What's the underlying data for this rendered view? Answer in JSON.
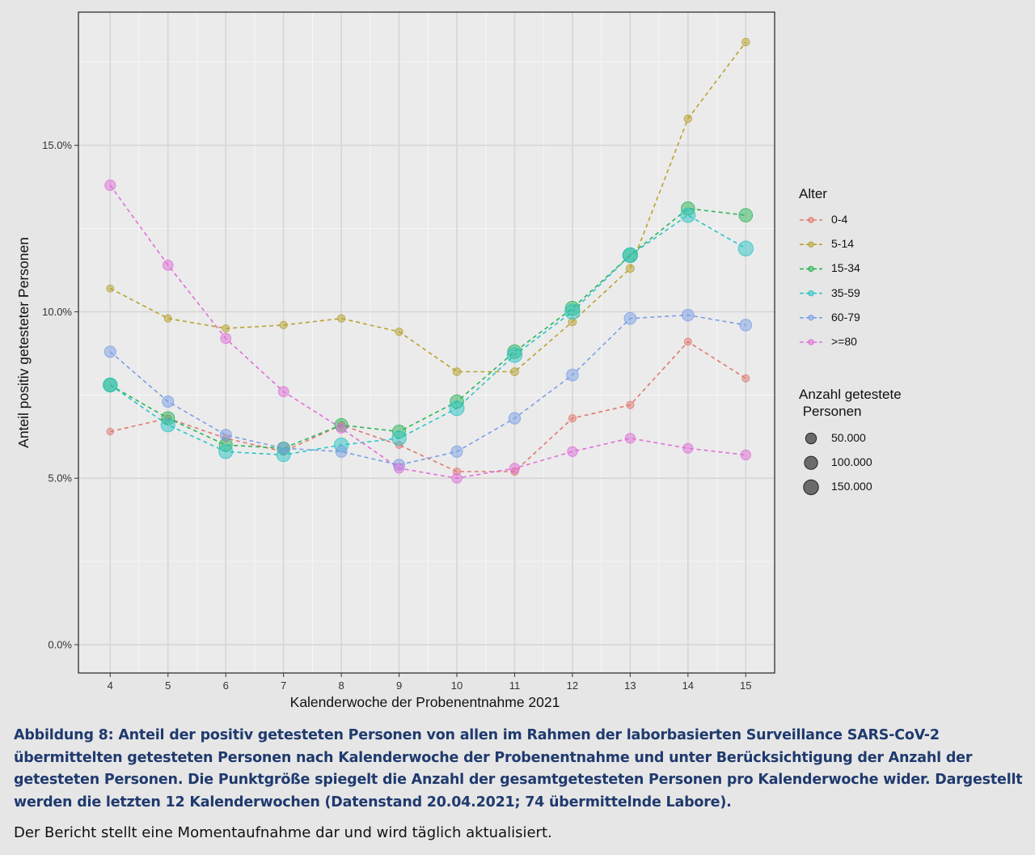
{
  "chart_data": {
    "type": "line",
    "title": "",
    "xlabel": "Kalenderwoche der Probenentnahme 2021",
    "ylabel": "Anteil positiv getesteter Personen",
    "x": [
      4,
      5,
      6,
      7,
      8,
      9,
      10,
      11,
      12,
      13,
      14,
      15
    ],
    "xlim": [
      3.45,
      15.5
    ],
    "ylim": [
      -0.85,
      19.0
    ],
    "yticks": [
      0,
      5,
      10,
      15
    ],
    "ytick_labels": [
      "0.0%",
      "5.0%",
      "10.0%",
      "15.0%"
    ],
    "xtick_labels": [
      "4",
      "5",
      "6",
      "7",
      "8",
      "9",
      "10",
      "11",
      "12",
      "13",
      "14",
      "15"
    ],
    "grid": true,
    "series": [
      {
        "name": "0-4",
        "color": "#e07a72",
        "values": [
          6.4,
          6.8,
          6.2,
          5.8,
          6.6,
          6.0,
          5.2,
          5.2,
          6.8,
          7.2,
          9.1,
          8.0
        ],
        "sizes": [
          4000,
          5000,
          5000,
          5000,
          6000,
          6000,
          7000,
          8000,
          8000,
          8000,
          7000,
          7000
        ]
      },
      {
        "name": "5-14",
        "color": "#b8a330",
        "values": [
          10.7,
          9.8,
          9.5,
          9.6,
          9.8,
          9.4,
          8.2,
          8.2,
          9.7,
          11.3,
          15.8,
          18.1
        ],
        "sizes": [
          6000,
          7000,
          7000,
          8000,
          9000,
          9000,
          11000,
          12000,
          12000,
          12000,
          10000,
          10000
        ]
      },
      {
        "name": "15-34",
        "color": "#2db55a",
        "values": [
          7.8,
          6.8,
          6.0,
          5.9,
          6.6,
          6.4,
          7.3,
          8.8,
          10.1,
          11.7,
          13.1,
          12.9
        ],
        "sizes": [
          110000,
          100000,
          100000,
          90000,
          95000,
          100000,
          110000,
          120000,
          130000,
          140000,
          110000,
          110000
        ]
      },
      {
        "name": "35-59",
        "color": "#2ec4c6",
        "values": [
          7.8,
          6.6,
          5.8,
          5.7,
          6.0,
          6.2,
          7.1,
          8.7,
          10.0,
          11.7,
          12.9,
          11.9
        ],
        "sizes": [
          130000,
          120000,
          120000,
          110000,
          120000,
          130000,
          140000,
          150000,
          150000,
          150000,
          140000,
          150000
        ]
      },
      {
        "name": "60-79",
        "color": "#7b9fe6",
        "values": [
          8.8,
          7.3,
          6.3,
          5.9,
          5.8,
          5.4,
          5.8,
          6.8,
          8.1,
          9.8,
          9.9,
          9.6
        ],
        "sizes": [
          60000,
          60000,
          60000,
          60000,
          60000,
          60000,
          60000,
          65000,
          70000,
          70000,
          70000,
          70000
        ]
      },
      {
        "name": ">=80",
        "color": "#e070d8",
        "values": [
          13.8,
          11.4,
          9.2,
          7.6,
          6.5,
          5.3,
          5.0,
          5.3,
          5.8,
          6.2,
          5.9,
          5.7
        ],
        "sizes": [
          45000,
          40000,
          40000,
          40000,
          35000,
          35000,
          35000,
          35000,
          35000,
          35000,
          35000,
          35000
        ]
      }
    ],
    "legend_color_title": "Alter",
    "legend_size_title": "Anzahl getestete\n Personen",
    "legend_sizes": [
      {
        "label": "50.000",
        "value": 50000
      },
      {
        "label": "100.000",
        "value": 100000
      },
      {
        "label": "150.000",
        "value": 150000
      }
    ],
    "legend_position": "right"
  },
  "caption": "Abbildung 8: Anteil der positiv getesteten Personen von allen im Rahmen der laborbasierten Surveillance SARS-CoV-2 übermittelten getesteten Personen nach Kalenderwoche der Probenentnahme und unter Berücksichtigung der Anzahl der getesteten Personen. Die Punktgröße spiegelt die Anzahl der gesamtgetesteten Personen pro Kalenderwoche wider. Dargestellt werden die letzten 12 Kalenderwochen (Datenstand 20.04.2021; 74 übermittelnde Labore).",
  "note": "Der Bericht stellt eine Momentaufnahme dar und wird täglich aktualisiert."
}
